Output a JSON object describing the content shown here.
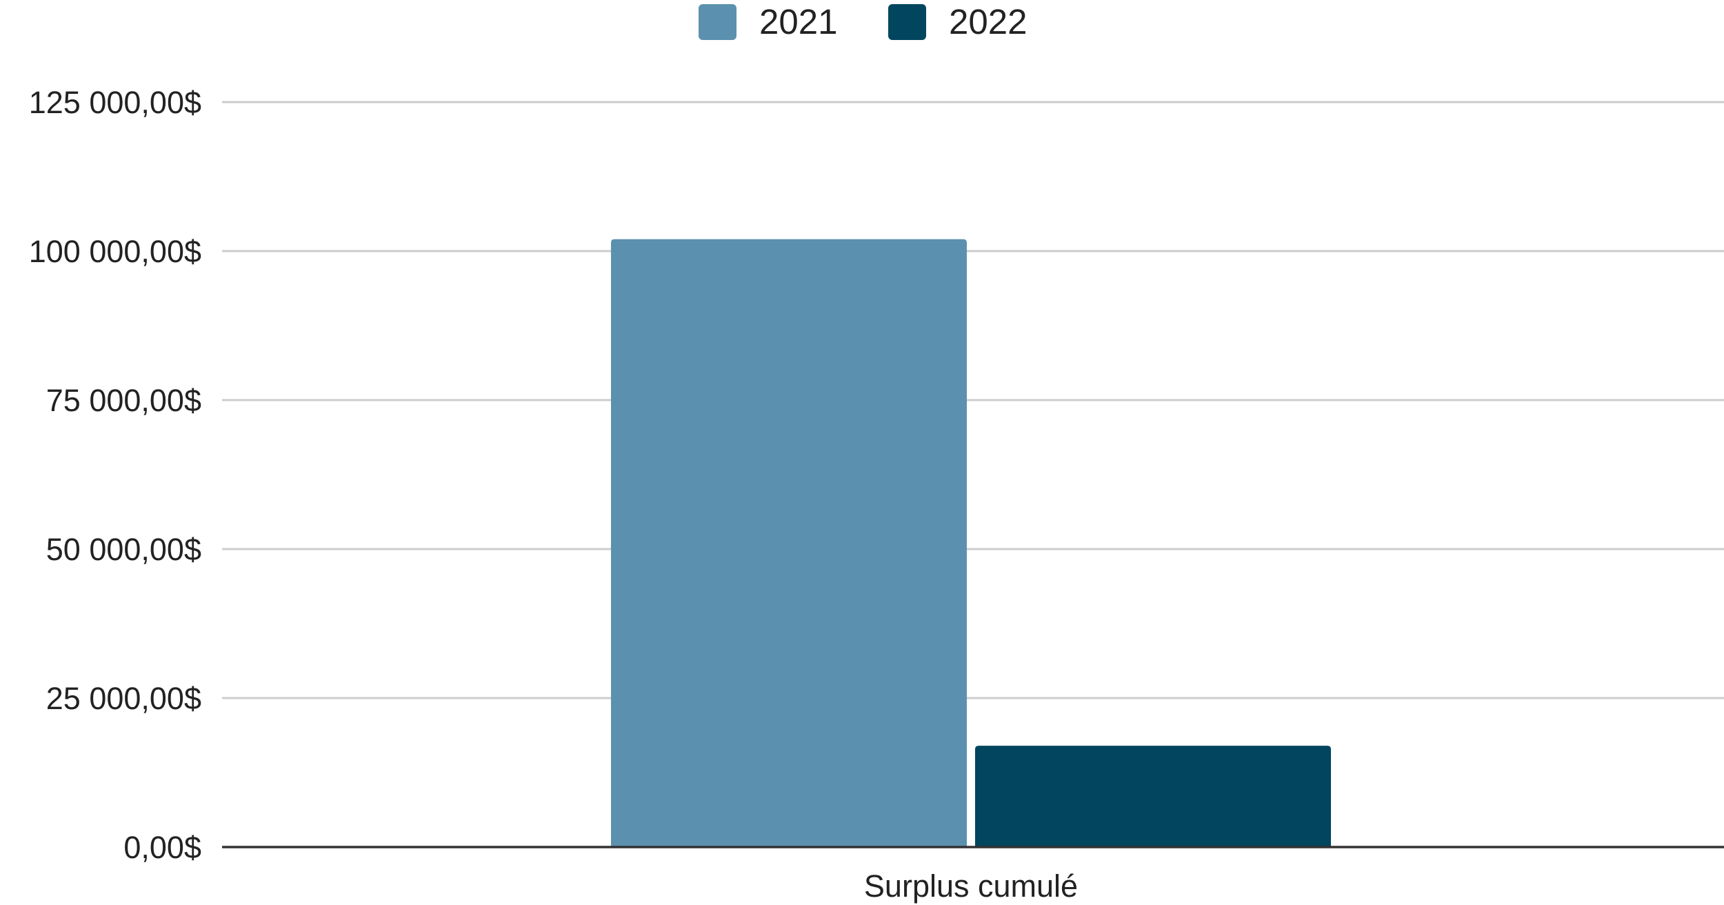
{
  "chart_data": {
    "type": "bar",
    "categories": [
      "Surplus cumulé"
    ],
    "series": [
      {
        "name": "2021",
        "values": [
          102000
        ],
        "color": "#5b91ae"
      },
      {
        "name": "2022",
        "values": [
          17000
        ],
        "color": "#02455f"
      }
    ],
    "y_ticks": [
      {
        "value": 0,
        "label": "0,00$"
      },
      {
        "value": 25000,
        "label": "25 000,00$"
      },
      {
        "value": 50000,
        "label": "50 000,00$"
      },
      {
        "value": 75000,
        "label": "75 000,00$"
      },
      {
        "value": 100000,
        "label": "100 000,00$"
      },
      {
        "value": 125000,
        "label": "125 000,00$"
      }
    ],
    "ylim": [
      0,
      125000
    ],
    "grid": true,
    "legend_position": "top-center",
    "title": "",
    "xlabel": "",
    "ylabel": ""
  }
}
